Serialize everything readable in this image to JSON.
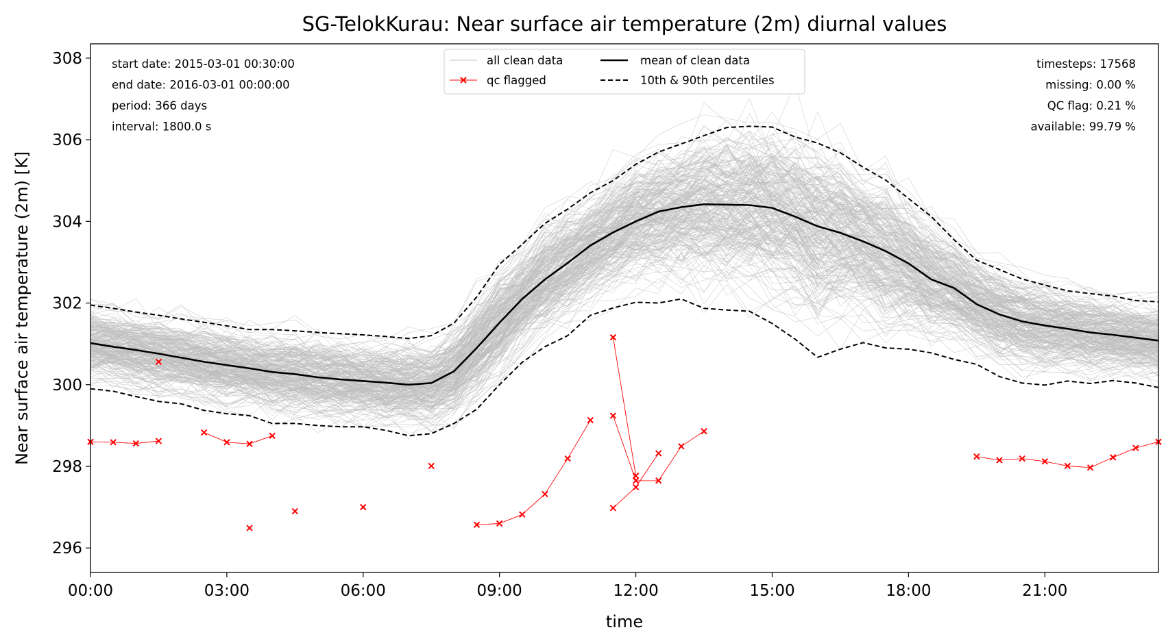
{
  "chart_data": {
    "type": "line",
    "title": "SG-TelokKurau: Near surface air temperature (2m) diurnal values",
    "xlabel": "time",
    "ylabel": "Near surface air temperature (2m) [K]",
    "xlim": [
      0,
      23.5
    ],
    "ylim": [
      295.4,
      308.35
    ],
    "x_ticks": [
      0,
      3,
      6,
      9,
      12,
      15,
      18,
      21
    ],
    "x_tick_labels": [
      "00:00",
      "03:00",
      "06:00",
      "09:00",
      "12:00",
      "15:00",
      "18:00",
      "21:00"
    ],
    "y_ticks": [
      296,
      298,
      300,
      302,
      304,
      306,
      308
    ],
    "y_tick_labels": [
      "296",
      "298",
      "300",
      "302",
      "304",
      "306",
      "308"
    ],
    "grid": false,
    "legend_placement": "top-center",
    "colors": {
      "clean": "#bdbdbd",
      "mean": "#000000",
      "percentile": "#000000",
      "qc": "#ff0000"
    },
    "legend": [
      {
        "label": "all clean data",
        "style": "thin-grey-line"
      },
      {
        "label": "qc flagged",
        "style": "red-x-line"
      },
      {
        "label": "mean of clean data",
        "style": "thick-black-line"
      },
      {
        "label": "10th & 90th percentiles",
        "style": "black-dashed-line"
      }
    ],
    "annotations": {
      "left": [
        "start date: 2015-03-01 00:30:00",
        "end date: 2016-03-01 00:00:00",
        "period: 366 days",
        "interval: 1800.0 s"
      ],
      "right": [
        "timesteps: 17568",
        "missing: 0.00 %",
        "QC flag: 0.21 %",
        "available: 99.79 %"
      ]
    },
    "x": [
      0,
      0.5,
      1,
      1.5,
      2,
      2.5,
      3,
      3.5,
      4,
      4.5,
      5,
      5.5,
      6,
      6.5,
      7,
      7.5,
      8,
      8.5,
      9,
      9.5,
      10,
      10.5,
      11,
      11.5,
      12,
      12.5,
      13,
      13.5,
      14,
      14.5,
      15,
      15.5,
      16,
      16.5,
      17,
      17.5,
      18,
      18.5,
      19,
      19.5,
      20,
      20.5,
      21,
      21.5,
      22,
      22.5,
      23,
      23.5
    ],
    "series": [
      {
        "name": "mean of clean data",
        "values": [
          301.02,
          300.93,
          300.85,
          300.76,
          300.66,
          300.56,
          300.48,
          300.4,
          300.31,
          300.26,
          300.18,
          300.13,
          300.09,
          300.05,
          300.0,
          300.04,
          300.33,
          300.9,
          301.52,
          302.1,
          302.58,
          302.98,
          303.41,
          303.73,
          304.0,
          304.24,
          304.35,
          304.42,
          304.41,
          304.4,
          304.33,
          304.12,
          303.88,
          303.72,
          303.51,
          303.27,
          302.97,
          302.58,
          302.37,
          301.97,
          301.72,
          301.55,
          301.45,
          301.37,
          301.28,
          301.22,
          301.15,
          301.08
        ]
      },
      {
        "name": "10th & 90th percentiles",
        "values": [
          301.95,
          301.87,
          301.78,
          301.7,
          301.61,
          301.53,
          301.44,
          301.35,
          301.35,
          301.32,
          301.28,
          301.25,
          301.22,
          301.18,
          301.13,
          301.2,
          301.51,
          302.15,
          302.95,
          303.44,
          303.95,
          304.3,
          304.7,
          305.0,
          305.4,
          305.7,
          305.9,
          306.1,
          306.3,
          306.33,
          306.31,
          306.07,
          305.92,
          305.68,
          305.33,
          305.01,
          304.56,
          304.12,
          303.55,
          303.05,
          302.82,
          302.59,
          302.44,
          302.3,
          302.23,
          302.17,
          302.06,
          302.03
        ]
      },
      {
        "name": "10th percentile",
        "values": [
          299.9,
          299.84,
          299.71,
          299.59,
          299.53,
          299.37,
          299.29,
          299.24,
          299.05,
          299.05,
          299.0,
          298.97,
          298.97,
          298.88,
          298.75,
          298.8,
          299.05,
          299.4,
          300.0,
          300.55,
          300.93,
          301.2,
          301.7,
          301.88,
          302.02,
          302.0,
          302.1,
          301.87,
          301.83,
          301.8,
          301.5,
          301.12,
          300.67,
          300.87,
          301.03,
          300.9,
          300.87,
          300.78,
          300.62,
          300.5,
          300.2,
          300.04,
          299.99,
          300.09,
          300.03,
          300.1,
          300.04,
          299.93
        ]
      }
    ],
    "qc_flagged": [
      {
        "x": [
          0,
          0.5,
          1,
          1.5
        ],
        "values": [
          298.6,
          298.59,
          298.56,
          298.62
        ]
      },
      {
        "x": [
          1.5
        ],
        "values": [
          300.56
        ]
      },
      {
        "x": [
          2.5,
          3,
          3.5,
          4
        ],
        "values": [
          298.83,
          298.59,
          298.55,
          298.75
        ]
      },
      {
        "x": [
          3.5
        ],
        "values": [
          296.49
        ]
      },
      {
        "x": [
          4.5
        ],
        "values": [
          296.9
        ]
      },
      {
        "x": [
          6
        ],
        "values": [
          297.0
        ]
      },
      {
        "x": [
          7.5
        ],
        "values": [
          298.01
        ]
      },
      {
        "x": [
          8.5,
          9,
          9.5,
          10,
          10.5,
          11
        ],
        "values": [
          296.57,
          296.6,
          296.82,
          297.32,
          298.19,
          299.13
        ]
      },
      {
        "x": [
          11.5,
          12
        ],
        "values": [
          301.16,
          297.77
        ]
      },
      {
        "x": [
          11.5,
          12,
          12.5,
          13,
          13.5
        ],
        "values": [
          299.24,
          297.65,
          297.65,
          298.49,
          298.86
        ]
      },
      {
        "x": [
          11.5,
          12,
          12.5
        ],
        "values": [
          296.98,
          297.49,
          298.32
        ]
      },
      {
        "x": [
          19.5,
          20,
          20.5,
          21,
          21.5,
          22,
          22.5,
          23,
          23.5
        ],
        "values": [
          298.24,
          298.15,
          298.19,
          298.12,
          298.01,
          297.97,
          298.22,
          298.45,
          298.6
        ]
      }
    ]
  }
}
